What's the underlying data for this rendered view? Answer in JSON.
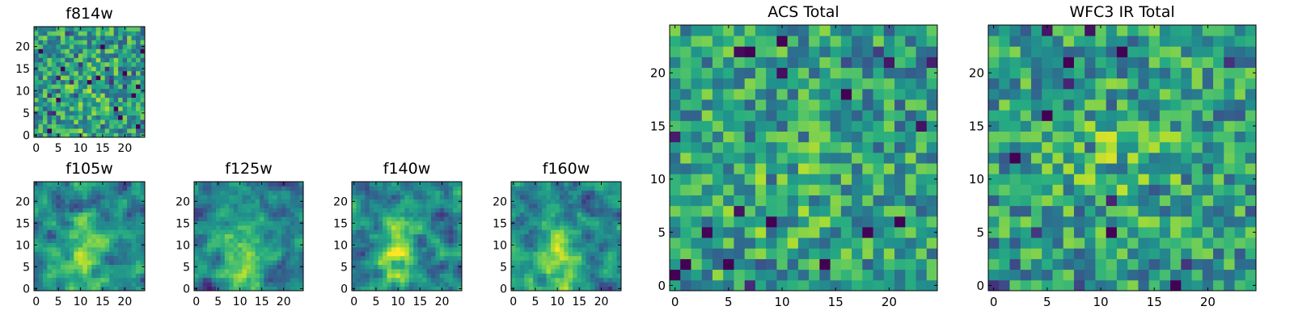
{
  "chart_data": [
    {
      "type": "heatmap",
      "title": "f814w",
      "xlim": [
        0,
        24
      ],
      "ylim": [
        0,
        24
      ],
      "xticks": [
        "0",
        "5",
        "10",
        "15",
        "20"
      ],
      "yticks": [
        "0",
        "5",
        "10",
        "15",
        "20"
      ],
      "grid": false,
      "colormap": "viridis",
      "seed": 814,
      "structure": "noisy field, slight central brightening"
    },
    {
      "type": "heatmap",
      "title": "f105w",
      "xlim": [
        0,
        24
      ],
      "ylim": [
        0,
        24
      ],
      "xticks": [
        "0",
        "5",
        "10",
        "15",
        "20"
      ],
      "yticks": [
        "0",
        "5",
        "10",
        "15",
        "20"
      ],
      "grid": false,
      "colormap": "viridis",
      "seed": 105,
      "structure": "bright central source near x=11, y=8"
    },
    {
      "type": "heatmap",
      "title": "f125w",
      "xlim": [
        0,
        24
      ],
      "ylim": [
        0,
        24
      ],
      "xticks": [
        "0",
        "5",
        "10",
        "15",
        "20"
      ],
      "yticks": [
        "0",
        "5",
        "10",
        "15",
        "20"
      ],
      "grid": false,
      "colormap": "viridis",
      "seed": 125,
      "structure": "bright central source near x=11, y=8"
    },
    {
      "type": "heatmap",
      "title": "f140w",
      "xlim": [
        0,
        24
      ],
      "ylim": [
        0,
        24
      ],
      "xticks": [
        "0",
        "5",
        "10",
        "15",
        "20"
      ],
      "yticks": [
        "0",
        "5",
        "10",
        "15",
        "20"
      ],
      "grid": false,
      "colormap": "viridis",
      "seed": 140,
      "structure": "bright elongated source near x=10, y=7"
    },
    {
      "type": "heatmap",
      "title": "f160w",
      "xlim": [
        0,
        24
      ],
      "ylim": [
        0,
        24
      ],
      "xticks": [
        "0",
        "5",
        "10",
        "15",
        "20"
      ],
      "yticks": [
        "0",
        "5",
        "10",
        "15",
        "20"
      ],
      "grid": false,
      "colormap": "viridis",
      "seed": 160,
      "structure": "bright central source near x=10, y=6"
    },
    {
      "type": "heatmap",
      "title": "ACS Total",
      "xlim": [
        0,
        24
      ],
      "ylim": [
        0,
        24
      ],
      "xticks": [
        "0",
        "5",
        "10",
        "15",
        "20"
      ],
      "yticks": [
        "0",
        "5",
        "10",
        "15",
        "20"
      ],
      "grid": false,
      "colormap": "viridis",
      "seed": 900,
      "structure": "noisy field, mostly green-yellow"
    },
    {
      "type": "heatmap",
      "title": "WFC3 IR Total",
      "xlim": [
        0,
        24
      ],
      "ylim": [
        0,
        24
      ],
      "xticks": [
        "0",
        "5",
        "10",
        "15",
        "20"
      ],
      "yticks": [
        "0",
        "5",
        "10",
        "15",
        "20"
      ],
      "grid": false,
      "colormap": "viridis",
      "seed": 901,
      "structure": "noisy field with bright region near x=12, y=12"
    }
  ]
}
